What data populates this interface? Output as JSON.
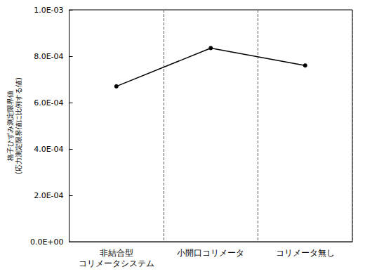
{
  "chart_data": {
    "type": "line",
    "y_label": "格子ひずみ測定限界値\n(応力測定限界値に比例する値)",
    "categories": [
      "非結合型\nコリメータシステム",
      "小開口コリメータ",
      "コリメータ無し"
    ],
    "values": [
      0.00067,
      0.000835,
      0.00076
    ],
    "color": "#000000",
    "marker": "circle",
    "line_style": "solid",
    "ylim": [
      0,
      0.001
    ],
    "yticks": [
      {
        "value": 0,
        "label": "0.0E+00"
      },
      {
        "value": 0.0002,
        "label": "2.0E-04"
      },
      {
        "value": 0.0004,
        "label": "4.0E-04"
      },
      {
        "value": 0.0006,
        "label": "6.0E-04"
      },
      {
        "value": 0.0008,
        "label": "8.0E-04"
      },
      {
        "value": 0.001,
        "label": "1.0E-03"
      }
    ],
    "grid": true
  }
}
